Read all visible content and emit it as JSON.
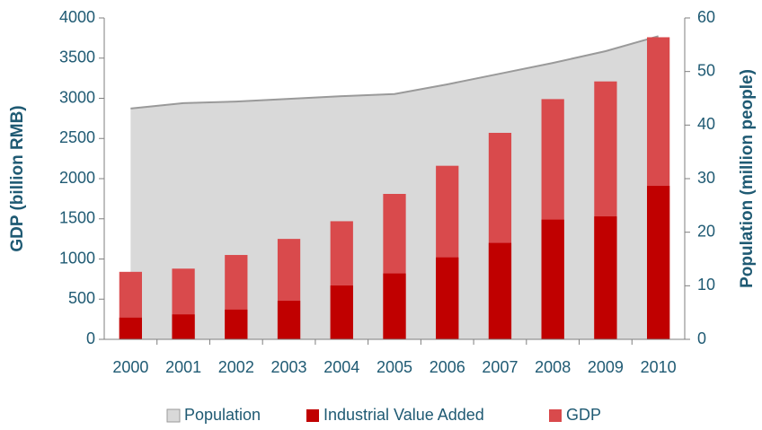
{
  "chart_data": {
    "type": "bar",
    "ylabel": "GDP (billion RMB)",
    "y2label": "Population (million people)",
    "categories": [
      "2000",
      "2001",
      "2002",
      "2003",
      "2004",
      "2005",
      "2006",
      "2007",
      "2008",
      "2009",
      "2010"
    ],
    "series": [
      {
        "name": "Population",
        "type": "area",
        "axis": "y2",
        "color": "#d9d9d9",
        "values": [
          43.1,
          44.1,
          44.4,
          44.9,
          45.4,
          45.8,
          47.6,
          49.6,
          51.6,
          53.8,
          56.6
        ]
      },
      {
        "name": "Industrial Value Added",
        "type": "bar",
        "color": "#c00000",
        "values": [
          270,
          310,
          370,
          480,
          670,
          820,
          1020,
          1200,
          1490,
          1530,
          1910
        ]
      },
      {
        "name": "GDP",
        "type": "bar",
        "color": "#d94a4c",
        "values": [
          840,
          880,
          1050,
          1250,
          1470,
          1810,
          2160,
          2570,
          2990,
          3210,
          3760
        ]
      }
    ],
    "ylim": [
      0,
      4000
    ],
    "yticks": [
      0,
      500,
      1000,
      1500,
      2000,
      2500,
      3000,
      3500,
      4000
    ],
    "y2lim": [
      0,
      60
    ],
    "y2ticks": [
      0,
      10,
      20,
      30,
      40,
      50,
      60
    ],
    "legend": "bottom"
  }
}
